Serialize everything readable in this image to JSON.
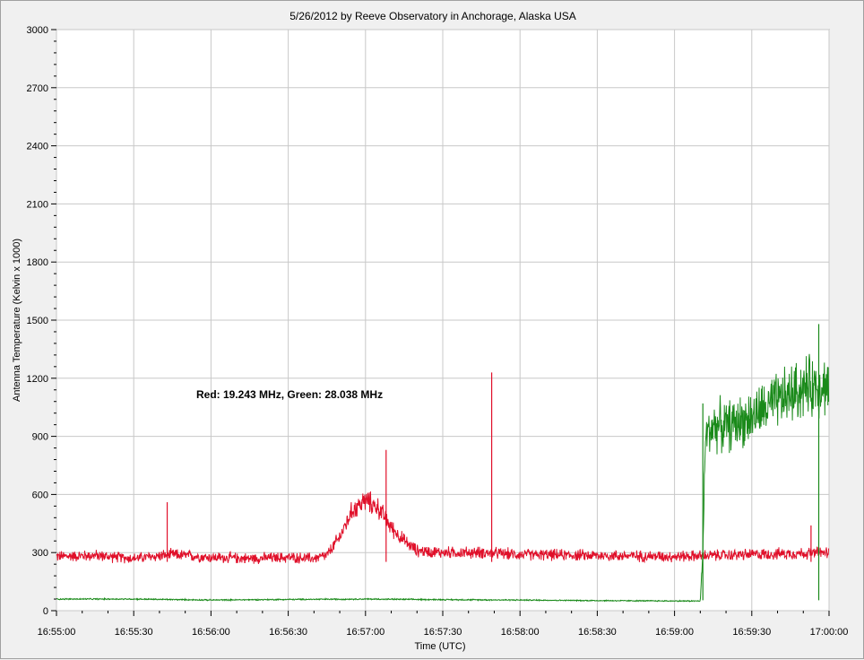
{
  "chart_data": {
    "type": "line",
    "title": "5/26/2012  by  Reeve Observatory  in  Anchorage, Alaska  USA",
    "xlabel": "Time (UTC)",
    "ylabel": "Antenna Temperature (Kelvin x 1000)",
    "annotation": "Red: 19.243 MHz, Green: 28.038 MHz",
    "xlim": [
      "16:55:00",
      "17:00:00"
    ],
    "ylim": [
      0,
      3000
    ],
    "x_ticks": [
      "16:55:00",
      "16:55:30",
      "16:56:00",
      "16:56:30",
      "16:57:00",
      "16:57:30",
      "16:58:00",
      "16:58:30",
      "16:59:00",
      "16:59:30",
      "17:00:00"
    ],
    "y_ticks": [
      0,
      300,
      600,
      900,
      1200,
      1500,
      1800,
      2100,
      2400,
      2700,
      3000
    ],
    "grid": true,
    "colors": {
      "red": "#e0102a",
      "green": "#1a8a1a",
      "grid": "#c8c8c8",
      "plot_bg": "#ffffff"
    },
    "series": [
      {
        "color": "red",
        "x": [
          "16:55:00",
          "16:55:15",
          "16:55:30",
          "16:55:45",
          "16:56:00",
          "16:56:15",
          "16:56:30",
          "16:56:40",
          "16:56:45",
          "16:56:50",
          "16:56:55",
          "16:57:00",
          "16:57:05",
          "16:57:10",
          "16:57:15",
          "16:57:20",
          "16:57:30",
          "16:57:45",
          "16:58:00",
          "16:58:30",
          "16:59:00",
          "16:59:30",
          "17:00:00"
        ],
        "values": [
          280,
          285,
          270,
          290,
          275,
          270,
          275,
          270,
          285,
          380,
          520,
          570,
          530,
          430,
          360,
          310,
          300,
          300,
          290,
          285,
          280,
          290,
          300
        ],
        "spikes": [
          {
            "x": "16:55:43",
            "value": 560
          },
          {
            "x": "16:57:08",
            "value": 830
          },
          {
            "x": "16:57:49",
            "value": 1230
          },
          {
            "x": "16:59:53",
            "value": 440
          }
        ]
      },
      {
        "color": "green",
        "x": [
          "16:55:00",
          "16:55:30",
          "16:56:00",
          "16:56:30",
          "16:57:00",
          "16:57:30",
          "16:58:00",
          "16:58:30",
          "16:59:00",
          "16:59:10",
          "16:59:11",
          "16:59:12",
          "16:59:15",
          "16:59:20",
          "16:59:30",
          "16:59:40",
          "16:59:50",
          "17:00:00"
        ],
        "values": [
          60,
          60,
          55,
          58,
          60,
          57,
          55,
          52,
          50,
          50,
          300,
          900,
          960,
          950,
          1000,
          1080,
          1150,
          1170
        ],
        "spikes": [
          {
            "x": "16:59:11",
            "value": 1070
          },
          {
            "x": "16:59:56",
            "value": 1480
          }
        ]
      }
    ]
  }
}
